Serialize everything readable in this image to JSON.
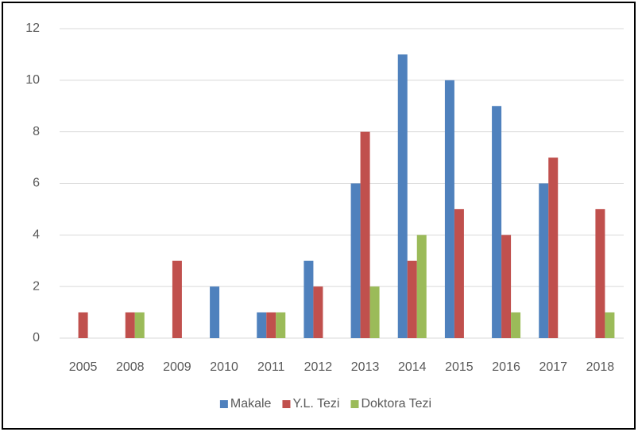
{
  "chart_data": {
    "type": "bar",
    "categories": [
      "2005",
      "2008",
      "2009",
      "2010",
      "2011",
      "2012",
      "2013",
      "2014",
      "2015",
      "2016",
      "2017",
      "2018"
    ],
    "series": [
      {
        "name": "Makale",
        "color": "#4f81bd",
        "values": [
          0,
          0,
          0,
          2,
          1,
          3,
          6,
          11,
          10,
          9,
          6,
          0
        ]
      },
      {
        "name": "Y.L. Tezi",
        "color": "#c0504d",
        "values": [
          1,
          1,
          3,
          0,
          1,
          2,
          8,
          3,
          5,
          4,
          7,
          5
        ]
      },
      {
        "name": "Doktora Tezi",
        "color": "#9bbb59",
        "values": [
          0,
          1,
          0,
          0,
          1,
          0,
          2,
          4,
          0,
          1,
          0,
          1
        ]
      }
    ],
    "ylim": [
      0,
      12
    ],
    "yticks": [
      0,
      2,
      4,
      6,
      8,
      10,
      12
    ],
    "grid": true,
    "legend": "bottom"
  }
}
